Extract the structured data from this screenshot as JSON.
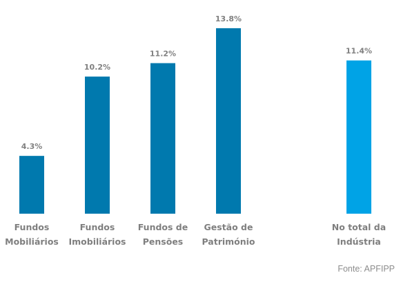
{
  "chart_data": {
    "type": "bar",
    "categories": [
      [
        "Fundos",
        "Mobiliários"
      ],
      [
        "Fundos",
        "Imobiliários"
      ],
      [
        "Fundos de",
        "Pensões"
      ],
      [
        "Gestão de",
        "Património"
      ],
      [
        "No total da",
        "Indústria"
      ]
    ],
    "values": [
      4.3,
      10.2,
      11.2,
      13.8,
      11.4
    ],
    "value_labels": [
      "4.3%",
      "10.2%",
      "11.2%",
      "13.8%",
      "11.4%"
    ],
    "colors": [
      "#0079AE",
      "#0079AE",
      "#0079AE",
      "#0079AE",
      "#00A3E6"
    ],
    "ylim": [
      0,
      14.0
    ],
    "grid": false,
    "legend": "none",
    "source": "Fonte: APFIPP"
  }
}
